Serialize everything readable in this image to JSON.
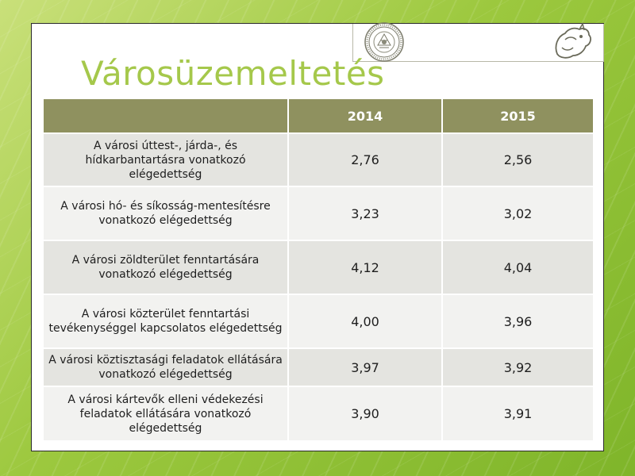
{
  "title": "Városüzemeltetés",
  "table": {
    "header": [
      "",
      "2014",
      "2015"
    ],
    "rows": [
      {
        "label": "A városi úttest-, járda-, és hídkarbantartásra vonatkozó elégedettség",
        "y2014": "2,76",
        "y2015": "2,56"
      },
      {
        "label": "A városi hó- és síkosság-mentesítésre vonatkozó elégedettség",
        "y2014": "3,23",
        "y2015": "3,02"
      },
      {
        "label": "A városi zöldterület fenntartására vonatkozó elégedettség",
        "y2014": "4,12",
        "y2015": "4,04"
      },
      {
        "label": "A városi közterület fenntartási tevékenységgel kapcsolatos elégedettség",
        "y2014": "4,00",
        "y2015": "3,96"
      },
      {
        "label": "A városi köztisztasági feladatok ellátására vonatkozó elégedettség",
        "y2014": "3,97",
        "y2015": "3,92"
      },
      {
        "label": "A városi kártevők elleni védekezési feladatok ellátására vonatkozó elégedettség",
        "y2014": "3,90",
        "y2015": "3,91"
      }
    ]
  },
  "colors": {
    "title": "#a5c84b",
    "header_bg": "#8f915f",
    "row_dark": "#e4e4e0",
    "row_light": "#f2f2f0",
    "background": "#9cc83e"
  },
  "icons": [
    "seal-logo",
    "animal-logo"
  ]
}
